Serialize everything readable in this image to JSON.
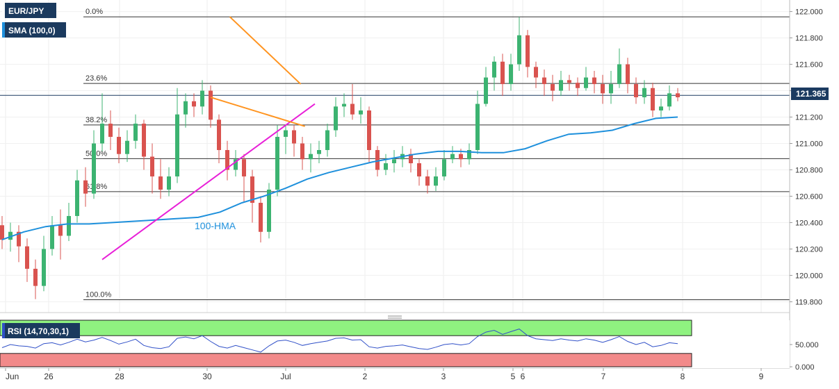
{
  "header": {
    "symbol": "EUR/JPY",
    "indicator": "SMA (100,0)",
    "rsi_indicator": "RSI (14,70,30,1)"
  },
  "chart_data": [
    {
      "type": "candlestick",
      "instrument": "EUR/JPY",
      "x_tick_labels": [
        "Jun",
        "26",
        "28",
        "30",
        "Jul",
        "2",
        "3",
        "5",
        "6",
        "7",
        "8",
        "9"
      ],
      "y_tick_labels": [
        "122.000",
        "121.800",
        "121.600",
        "121.400",
        "121.200",
        "121.000",
        "120.800",
        "120.600",
        "120.400",
        "120.200",
        "120.000",
        "119.800"
      ],
      "ylim": [
        119.76,
        122.04
      ],
      "current_price": "121.365",
      "current_value": 121.365,
      "fibonacci_levels": [
        {
          "label": "0.0%",
          "value": 121.96
        },
        {
          "label": "23.6%",
          "value": 121.455
        },
        {
          "label": "38.2%",
          "value": 121.14
        },
        {
          "label": "50.0%",
          "value": 120.885
        },
        {
          "label": "61.8%",
          "value": 120.635
        },
        {
          "label": "100.0%",
          "value": 119.815
        }
      ],
      "hma_label": "100-HMA",
      "hma_values": [
        120.27,
        120.33,
        120.37,
        120.39,
        120.39,
        120.4,
        120.41,
        120.42,
        120.43,
        120.44,
        120.48,
        120.55,
        120.6,
        120.66,
        120.73,
        120.78,
        120.82,
        120.86,
        120.89,
        120.92,
        120.94,
        120.94,
        120.93,
        120.93,
        120.96,
        121.02,
        121.07,
        121.08,
        121.1,
        121.15,
        121.19,
        121.2
      ],
      "candles": [
        [
          120.38,
          120.27,
          120.45,
          120.2
        ],
        [
          120.27,
          120.33,
          120.4,
          120.18
        ],
        [
          120.33,
          120.22,
          120.38,
          120.1
        ],
        [
          120.22,
          120.05,
          120.28,
          119.95
        ],
        [
          120.05,
          119.92,
          120.12,
          119.82
        ],
        [
          119.92,
          120.2,
          120.3,
          119.88
        ],
        [
          120.2,
          120.38,
          120.45,
          120.15
        ],
        [
          120.38,
          120.3,
          120.5,
          120.12
        ],
        [
          120.3,
          120.45,
          120.55,
          120.26
        ],
        [
          120.45,
          120.72,
          120.8,
          120.4
        ],
        [
          120.72,
          120.62,
          120.82,
          120.52
        ],
        [
          120.62,
          121.0,
          121.1,
          120.58
        ],
        [
          121.0,
          121.15,
          121.38,
          120.94
        ],
        [
          121.15,
          121.05,
          121.25,
          120.95
        ],
        [
          121.05,
          120.92,
          121.12,
          120.85
        ],
        [
          120.92,
          121.02,
          121.1,
          120.86
        ],
        [
          121.02,
          121.15,
          121.22,
          120.96
        ],
        [
          121.15,
          120.9,
          121.18,
          120.8
        ],
        [
          120.9,
          120.75,
          121.0,
          120.62
        ],
        [
          120.75,
          120.65,
          120.88,
          120.58
        ],
        [
          120.65,
          120.75,
          120.82,
          120.6
        ],
        [
          120.75,
          121.22,
          121.42,
          120.7
        ],
        [
          121.22,
          121.32,
          121.38,
          121.12
        ],
        [
          121.32,
          121.28,
          121.38,
          121.2
        ],
        [
          121.28,
          121.4,
          121.48,
          121.22
        ],
        [
          121.4,
          121.18,
          121.44,
          121.12
        ],
        [
          121.18,
          120.95,
          121.22,
          120.85
        ],
        [
          120.95,
          120.8,
          121.02,
          120.72
        ],
        [
          120.8,
          120.88,
          120.95,
          120.75
        ],
        [
          120.88,
          120.75,
          120.92,
          120.55
        ],
        [
          120.75,
          120.55,
          120.8,
          120.4
        ],
        [
          120.55,
          120.33,
          120.6,
          120.25
        ],
        [
          120.33,
          120.65,
          120.7,
          120.28
        ],
        [
          120.65,
          121.05,
          121.14,
          120.6
        ],
        [
          121.05,
          121.1,
          121.14,
          120.92
        ],
        [
          121.1,
          121.0,
          121.14,
          120.9
        ],
        [
          121.0,
          120.88,
          121.05,
          120.8
        ],
        [
          120.88,
          120.92,
          121.0,
          120.78
        ],
        [
          120.92,
          120.95,
          121.02,
          120.85
        ],
        [
          120.95,
          121.1,
          121.15,
          120.9
        ],
        [
          121.1,
          121.28,
          121.35,
          121.05
        ],
        [
          121.28,
          121.3,
          121.38,
          121.2
        ],
        [
          121.3,
          121.22,
          121.45,
          121.18
        ],
        [
          121.22,
          121.25,
          121.35,
          121.15
        ],
        [
          121.25,
          120.95,
          121.28,
          120.85
        ],
        [
          120.95,
          120.8,
          120.98,
          120.75
        ],
        [
          120.8,
          120.85,
          120.92,
          120.76
        ],
        [
          120.85,
          120.88,
          120.95,
          120.78
        ],
        [
          120.88,
          120.92,
          120.98,
          120.82
        ],
        [
          120.92,
          120.85,
          120.96,
          120.78
        ],
        [
          120.85,
          120.75,
          120.88,
          120.68
        ],
        [
          120.75,
          120.68,
          120.8,
          120.62
        ],
        [
          120.68,
          120.75,
          120.82,
          120.64
        ],
        [
          120.75,
          120.88,
          120.95,
          120.72
        ],
        [
          120.88,
          120.92,
          120.98,
          120.85
        ],
        [
          120.92,
          120.88,
          120.96,
          120.82
        ],
        [
          120.88,
          120.95,
          121.0,
          120.84
        ],
        [
          120.95,
          121.3,
          121.4,
          120.92
        ],
        [
          121.3,
          121.5,
          121.58,
          121.28
        ],
        [
          121.5,
          121.62,
          121.66,
          121.4
        ],
        [
          121.62,
          121.45,
          121.68,
          121.36
        ],
        [
          121.45,
          121.6,
          121.68,
          121.4
        ],
        [
          121.6,
          121.82,
          121.96,
          121.55
        ],
        [
          121.82,
          121.58,
          121.86,
          121.5
        ],
        [
          121.58,
          121.5,
          121.62,
          121.42
        ],
        [
          121.5,
          121.45,
          121.56,
          121.36
        ],
        [
          121.45,
          121.4,
          121.52,
          121.32
        ],
        [
          121.4,
          121.48,
          121.55,
          121.36
        ],
        [
          121.48,
          121.46,
          121.52,
          121.4
        ],
        [
          121.46,
          121.42,
          121.5,
          121.36
        ],
        [
          121.42,
          121.5,
          121.58,
          121.4
        ],
        [
          121.5,
          121.45,
          121.55,
          121.38
        ],
        [
          121.45,
          121.38,
          121.52,
          121.3
        ],
        [
          121.38,
          121.45,
          121.55,
          121.3
        ],
        [
          121.45,
          121.6,
          121.72,
          121.42
        ],
        [
          121.6,
          121.45,
          121.65,
          121.38
        ],
        [
          121.45,
          121.35,
          121.5,
          121.3
        ],
        [
          121.35,
          121.42,
          121.48,
          121.3
        ],
        [
          121.42,
          121.25,
          121.46,
          121.2
        ],
        [
          121.25,
          121.28,
          121.34,
          121.2
        ],
        [
          121.28,
          121.38,
          121.44,
          121.25
        ],
        [
          121.38,
          121.35,
          121.42,
          121.32
        ]
      ],
      "trendlines": [
        {
          "name": "support-magenta",
          "color": "#e820d8",
          "x1": 12.0,
          "y1": 120.12,
          "x2": 37.5,
          "y2": 121.3
        },
        {
          "name": "upper-orange",
          "color": "#ff9420",
          "x1": 27.3,
          "y1": 121.96,
          "x2": 35.8,
          "y2": 121.45
        },
        {
          "name": "lower-orange",
          "color": "#ff9420",
          "x1": 25.0,
          "y1": 121.35,
          "x2": 36.3,
          "y2": 121.13
        }
      ]
    },
    {
      "type": "line",
      "name": "RSI (14,70,30,1)",
      "y_tick_labels": [
        "50.000",
        "0.000"
      ],
      "ylim": [
        0,
        100
      ],
      "overbought": 70,
      "oversold": 30,
      "values": [
        43,
        50,
        47,
        46,
        42,
        52,
        54,
        49,
        55,
        62,
        56,
        60,
        66,
        59,
        51,
        56,
        62,
        48,
        43,
        41,
        45,
        64,
        67,
        63,
        70,
        57,
        46,
        42,
        48,
        43,
        38,
        33,
        47,
        58,
        60,
        55,
        48,
        52,
        55,
        58,
        64,
        65,
        60,
        61,
        45,
        42,
        46,
        47,
        49,
        45,
        41,
        39,
        44,
        50,
        52,
        49,
        52,
        68,
        78,
        82,
        73,
        79,
        85,
        70,
        63,
        61,
        59,
        63,
        60,
        58,
        63,
        60,
        55,
        61,
        68,
        57,
        50,
        55,
        45,
        48,
        54,
        52
      ]
    }
  ],
  "colors": {
    "up": "#3cb371",
    "down": "#d9534f",
    "hma": "#1e90dc",
    "support": "#e820d8",
    "resistance": "#ff9420",
    "rsi_line": "#3050c8",
    "overbought_zone": "#8ff280",
    "oversold_zone": "#f28a8a",
    "price_tag": "#1b3a60"
  }
}
